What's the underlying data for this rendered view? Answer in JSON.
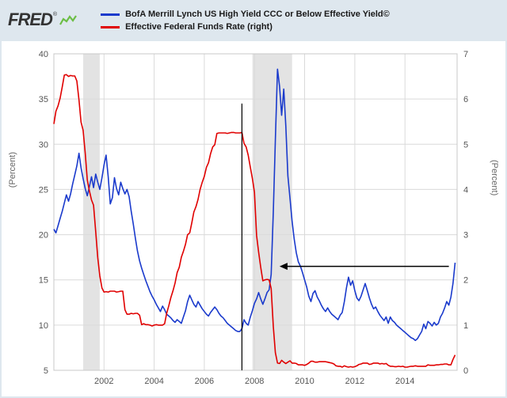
{
  "logo": {
    "text": "FRED",
    "reg": "®"
  },
  "legend": [
    {
      "label": "BofA Merrill Lynch US High Yield CCC or Below Effective Yield©",
      "color": "#1a3acc"
    },
    {
      "label": "Effective Federal Funds Rate (right)",
      "color": "#e00000"
    }
  ],
  "chart_data": {
    "type": "line",
    "title": "",
    "x_range": [
      2000,
      2016.08
    ],
    "x_ticks": [
      2002,
      2004,
      2006,
      2008,
      2010,
      2012,
      2014
    ],
    "left_axis": {
      "label": "(Percent)",
      "min": 5,
      "max": 40,
      "ticks": [
        5,
        10,
        15,
        20,
        25,
        30,
        35,
        40
      ]
    },
    "right_axis": {
      "label": "(Percent)",
      "min": 0,
      "max": 7,
      "ticks": [
        0,
        1,
        2,
        3,
        4,
        5,
        6,
        7
      ]
    },
    "colors": {
      "grid": "#dadada",
      "border": "#c8c8c8",
      "recession": "#e3e3e3",
      "background": "#ffffff",
      "annotation": "#000000",
      "tick_text": "#555555"
    },
    "recession_bands": [
      [
        2001.17,
        2001.83
      ],
      [
        2007.92,
        2009.5
      ]
    ],
    "series": [
      {
        "name": "BofA Merrill Lynch US High Yield CCC or Below Effective Yield©",
        "axis": "left",
        "color": "#1a3acc",
        "x_start": 2000.0,
        "x_step": 0.0833333,
        "values": [
          20.6,
          20.2,
          21.0,
          21.8,
          22.6,
          23.5,
          24.4,
          23.7,
          24.5,
          25.6,
          26.6,
          27.6,
          29.0,
          27.4,
          26.2,
          25.1,
          24.3,
          25.3,
          26.4,
          25.2,
          26.7,
          25.8,
          25.0,
          26.3,
          27.7,
          28.8,
          26.4,
          23.4,
          24.1,
          26.3,
          25.1,
          24.4,
          25.8,
          25.1,
          24.5,
          25.0,
          24.2,
          22.6,
          21.2,
          19.6,
          18.2,
          17.1,
          16.3,
          15.6,
          14.9,
          14.3,
          13.7,
          13.2,
          12.8,
          12.3,
          11.9,
          11.5,
          12.1,
          11.7,
          11.2,
          11.0,
          10.8,
          10.5,
          10.3,
          10.6,
          10.4,
          10.2,
          10.9,
          11.6,
          12.6,
          13.3,
          12.8,
          12.3,
          12.0,
          12.6,
          12.2,
          11.8,
          11.5,
          11.2,
          11.0,
          11.4,
          11.7,
          12.0,
          11.7,
          11.3,
          11.0,
          10.8,
          10.5,
          10.2,
          10.0,
          9.8,
          9.6,
          9.4,
          9.3,
          9.3,
          9.6,
          10.6,
          10.2,
          10.0,
          10.9,
          11.6,
          12.4,
          12.9,
          13.6,
          12.9,
          12.3,
          12.9,
          13.6,
          13.9,
          15.6,
          22.5,
          30.5,
          38.3,
          36.4,
          33.2,
          36.1,
          32.0,
          26.5,
          24.0,
          21.5,
          19.5,
          18.0,
          17.0,
          16.5,
          15.8,
          15.0,
          14.2,
          13.2,
          12.6,
          13.5,
          13.8,
          13.1,
          12.7,
          12.2,
          11.8,
          11.5,
          11.9,
          11.5,
          11.2,
          11.0,
          10.8,
          10.6,
          11.1,
          11.4,
          12.6,
          14.1,
          15.3,
          14.4,
          14.9,
          13.8,
          13.0,
          12.7,
          13.2,
          13.9,
          14.6,
          13.8,
          13.0,
          12.3,
          11.8,
          12.0,
          11.5,
          11.1,
          10.8,
          10.5,
          10.9,
          10.2,
          10.9,
          10.5,
          10.3,
          10.0,
          9.8,
          9.6,
          9.4,
          9.2,
          9.0,
          8.8,
          8.6,
          8.5,
          8.3,
          8.5,
          8.9,
          9.3,
          10.1,
          9.6,
          10.4,
          10.2,
          9.9,
          10.3,
          10.0,
          10.2,
          10.9,
          11.3,
          11.9,
          12.6,
          12.2,
          13.1,
          14.6,
          16.9
        ]
      },
      {
        "name": "Effective Federal Funds Rate (right)",
        "axis": "right",
        "color": "#e00000",
        "x_start": 2000.0,
        "x_step": 0.0833333,
        "values": [
          5.45,
          5.73,
          5.85,
          6.02,
          6.27,
          6.53,
          6.54,
          6.5,
          6.52,
          6.51,
          6.51,
          6.4,
          5.98,
          5.49,
          5.31,
          4.8,
          4.21,
          3.97,
          3.77,
          3.65,
          3.07,
          2.49,
          2.09,
          1.82,
          1.73,
          1.74,
          1.73,
          1.75,
          1.75,
          1.75,
          1.73,
          1.74,
          1.75,
          1.75,
          1.34,
          1.24,
          1.24,
          1.26,
          1.25,
          1.26,
          1.26,
          1.22,
          1.01,
          1.03,
          1.01,
          1.01,
          1.0,
          0.98,
          1.0,
          1.01,
          1.0,
          1.0,
          1.0,
          1.03,
          1.26,
          1.43,
          1.61,
          1.76,
          1.93,
          2.16,
          2.28,
          2.5,
          2.63,
          2.79,
          3.0,
          3.04,
          3.26,
          3.5,
          3.62,
          3.78,
          4.0,
          4.16,
          4.29,
          4.49,
          4.59,
          4.79,
          4.94,
          4.99,
          5.24,
          5.25,
          5.25,
          5.25,
          5.25,
          5.24,
          5.25,
          5.26,
          5.26,
          5.25,
          5.25,
          5.25,
          5.26,
          5.02,
          4.94,
          4.76,
          4.49,
          4.24,
          3.94,
          2.98,
          2.61,
          2.28,
          1.98,
          2.0,
          2.01,
          2.0,
          1.81,
          0.97,
          0.39,
          0.16,
          0.15,
          0.22,
          0.18,
          0.15,
          0.18,
          0.21,
          0.16,
          0.16,
          0.15,
          0.12,
          0.12,
          0.12,
          0.11,
          0.13,
          0.16,
          0.2,
          0.2,
          0.18,
          0.18,
          0.19,
          0.19,
          0.19,
          0.19,
          0.18,
          0.17,
          0.16,
          0.14,
          0.1,
          0.09,
          0.09,
          0.07,
          0.1,
          0.08,
          0.07,
          0.08,
          0.07,
          0.08,
          0.1,
          0.13,
          0.14,
          0.16,
          0.16,
          0.16,
          0.13,
          0.14,
          0.16,
          0.16,
          0.16,
          0.14,
          0.15,
          0.14,
          0.15,
          0.11,
          0.09,
          0.09,
          0.08,
          0.08,
          0.09,
          0.08,
          0.09,
          0.07,
          0.07,
          0.08,
          0.09,
          0.09,
          0.1,
          0.09,
          0.09,
          0.09,
          0.09,
          0.09,
          0.12,
          0.11,
          0.11,
          0.11,
          0.12,
          0.12,
          0.13,
          0.13,
          0.14,
          0.14,
          0.12,
          0.12,
          0.24,
          0.34
        ]
      }
    ],
    "annotations": {
      "vline": {
        "x": 2007.5,
        "axis": "left",
        "y1": 5,
        "y2": 34.5
      },
      "arrow": {
        "axis": "left",
        "y": 16.5,
        "x_tail": 2015.75,
        "x_head": 2009.0
      }
    }
  }
}
